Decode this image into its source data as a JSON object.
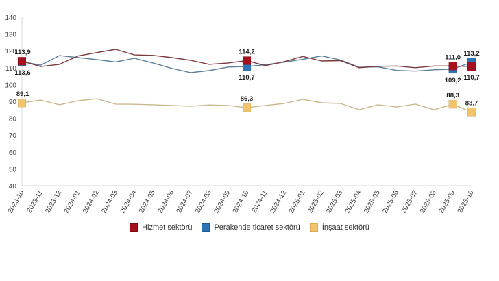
{
  "chart_data": {
    "type": "line",
    "title": "",
    "xlabel": "",
    "ylabel": "",
    "ylim": [
      40,
      140
    ],
    "yticks": [
      40,
      50,
      60,
      70,
      80,
      90,
      100,
      110,
      120,
      130,
      140
    ],
    "grid": false,
    "legend_position": "bottom",
    "categories": [
      "2023-10",
      "2023-11",
      "2023-12",
      "2024-01",
      "2024-02",
      "2024-03",
      "2024-04",
      "2024-05",
      "2024-06",
      "2024-07",
      "2024-08",
      "2024-09",
      "2024-10",
      "2024-11",
      "2024-12",
      "2025-01",
      "2025-02",
      "2025-03",
      "2025-04",
      "2025-05",
      "2025-06",
      "2025-07",
      "2025-08",
      "2025-09",
      "2025-10"
    ],
    "series": [
      {
        "name": "Hizmet sektörü",
        "color": "#A50F1E",
        "line_color": "#7A3A3E",
        "values": [
          113.9,
          110.7,
          112.0,
          117.0,
          119.0,
          120.9,
          117.6,
          117.3,
          116.0,
          114.4,
          112.0,
          112.8,
          114.2,
          111.2,
          113.6,
          116.7,
          114.0,
          114.2,
          110.0,
          110.8,
          111.0,
          110.0,
          111.0,
          111.0,
          110.7
        ],
        "labeled_points": [
          {
            "index": 0,
            "label": "113,9",
            "position": "above"
          },
          {
            "index": 12,
            "label": "114,2",
            "position": "above"
          },
          {
            "index": 23,
            "label": "111,0",
            "position": "above"
          },
          {
            "index": 24,
            "label": "110,7",
            "position": "below"
          }
        ]
      },
      {
        "name": "Perakende ticaret sektörü",
        "color": "#2E75B6",
        "line_color": "#5A7F99",
        "values": [
          113.6,
          111.5,
          117.2,
          116.0,
          114.8,
          113.4,
          115.6,
          112.8,
          109.6,
          107.1,
          108.3,
          110.4,
          110.7,
          111.8,
          113.3,
          115.0,
          117.0,
          114.6,
          110.3,
          110.5,
          108.4,
          108.0,
          108.8,
          109.2,
          113.2
        ],
        "labeled_points": [
          {
            "index": 0,
            "label": "113,6",
            "position": "below"
          },
          {
            "index": 12,
            "label": "110,7",
            "position": "below"
          },
          {
            "index": 23,
            "label": "109,2",
            "position": "below"
          },
          {
            "index": 24,
            "label": "113,2",
            "position": "above"
          }
        ]
      },
      {
        "name": "İnşaat sektörü",
        "color": "#F2C46D",
        "line_color": "#C9B98F",
        "values": [
          89.1,
          90.8,
          88.0,
          90.4,
          91.6,
          88.4,
          88.3,
          88.0,
          87.6,
          87.1,
          87.9,
          87.6,
          86.3,
          87.6,
          88.8,
          91.2,
          89.2,
          88.8,
          85.1,
          88.0,
          86.7,
          88.4,
          85.1,
          88.3,
          83.7
        ],
        "labeled_points": [
          {
            "index": 0,
            "label": "89,1",
            "position": "above"
          },
          {
            "index": 12,
            "label": "86,3",
            "position": "above"
          },
          {
            "index": 23,
            "label": "88,3",
            "position": "above"
          },
          {
            "index": 24,
            "label": "83,7",
            "position": "above"
          }
        ]
      }
    ]
  }
}
